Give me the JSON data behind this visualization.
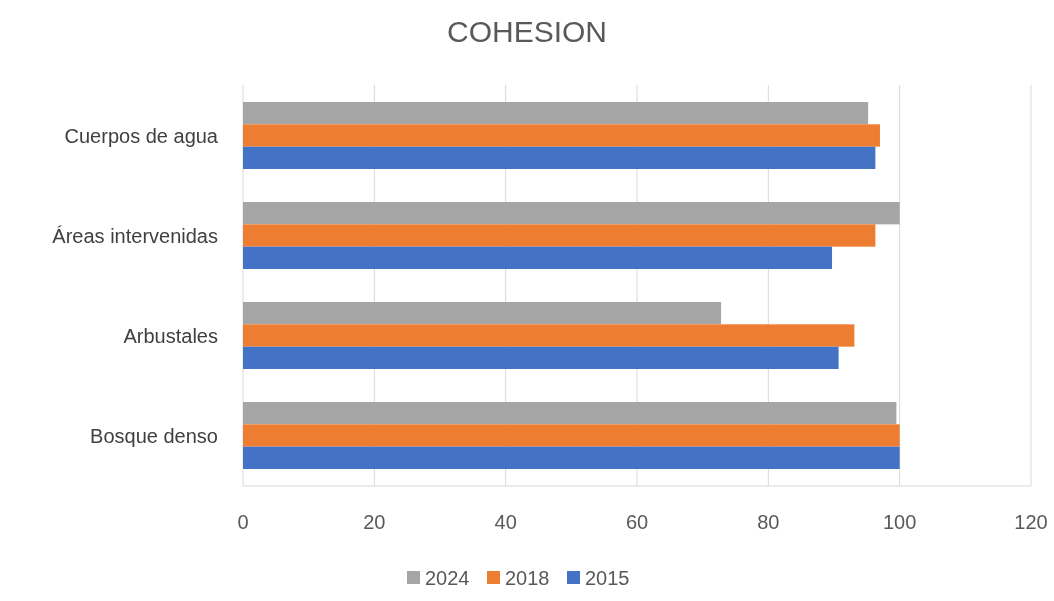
{
  "chart_data": {
    "type": "bar",
    "orientation": "horizontal",
    "title": "COHESION",
    "categories": [
      "Cuerpos de agua",
      "Áreas intervenidas",
      "Arbustales",
      "Bosque denso"
    ],
    "series": [
      {
        "name": "2024",
        "color": "#a5a5a5",
        "values": [
          95.2,
          100,
          72.8,
          99.5
        ]
      },
      {
        "name": "2018",
        "color": "#ed7d31",
        "values": [
          97,
          96.3,
          93.1,
          100
        ]
      },
      {
        "name": "2015",
        "color": "#4472c4",
        "values": [
          96.3,
          89.7,
          90.7,
          100
        ]
      }
    ],
    "xlim": [
      0,
      120
    ],
    "xticks": [
      0,
      20,
      40,
      60,
      80,
      100,
      120
    ],
    "grid": "x",
    "legend": "bottom"
  }
}
